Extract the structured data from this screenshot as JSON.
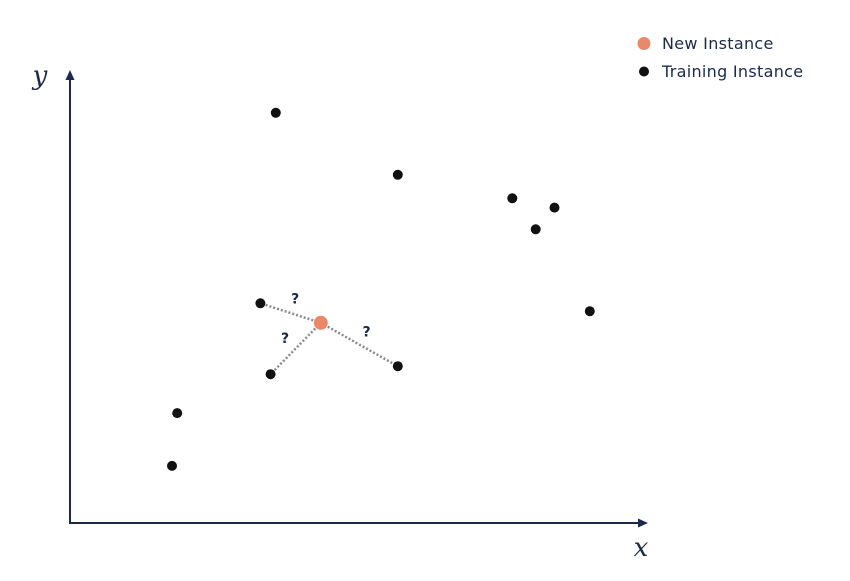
{
  "legend": {
    "new_instance": "New Instance",
    "training_instance": "Training Instance"
  },
  "axes": {
    "x_label": "x",
    "y_label": "y"
  },
  "distance_marker": "?",
  "colors": {
    "axis": "#1b2a4a",
    "training_point": "#111111",
    "new_point": "#e9896a",
    "distance_line": "#8a8a8a",
    "text": "#1b2a4a"
  },
  "chart_data": {
    "type": "scatter",
    "title": "",
    "xlabel": "x",
    "ylabel": "y",
    "xlim": [
      0,
      100
    ],
    "ylim": [
      0,
      100
    ],
    "grid": false,
    "legend_position": "top-right",
    "series": [
      {
        "name": "Training Instance",
        "points": [
          {
            "x": 36.1,
            "y": 92.6
          },
          {
            "x": 57.5,
            "y": 78.6
          },
          {
            "x": 77.6,
            "y": 73.3
          },
          {
            "x": 85.0,
            "y": 71.2
          },
          {
            "x": 81.7,
            "y": 66.3
          },
          {
            "x": 33.4,
            "y": 49.6
          },
          {
            "x": 91.2,
            "y": 47.8
          },
          {
            "x": 57.5,
            "y": 35.4
          },
          {
            "x": 35.2,
            "y": 33.6
          },
          {
            "x": 18.8,
            "y": 24.8
          },
          {
            "x": 17.9,
            "y": 12.9
          }
        ]
      },
      {
        "name": "New Instance",
        "points": [
          {
            "x": 44.0,
            "y": 45.2
          }
        ]
      }
    ],
    "distance_links": [
      {
        "from": 0,
        "to": 5
      },
      {
        "from": 0,
        "to": 8
      },
      {
        "from": 0,
        "to": 7
      }
    ]
  }
}
